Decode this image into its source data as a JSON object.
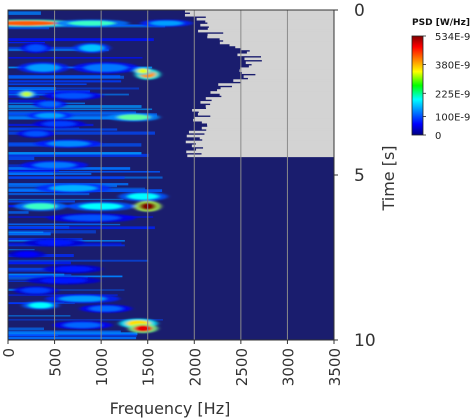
{
  "chart_data": {
    "type": "heatmap",
    "title": "",
    "xlabel": "Frequency [Hz]",
    "ylabel": "Time [s]",
    "xlim": [
      0,
      3500
    ],
    "ylim": [
      0,
      10
    ],
    "y_inverted": true,
    "x_ticks": [
      0,
      500,
      1000,
      1500,
      2000,
      2500,
      3000,
      3500
    ],
    "x_tick_labels": [
      "0",
      "500",
      "1000",
      "1500",
      "2000",
      "2500",
      "3000",
      "3500"
    ],
    "y_ticks": [
      0,
      5,
      10
    ],
    "y_tick_labels": [
      "0",
      "5",
      "10"
    ],
    "grid": true,
    "colormap": "jet",
    "background_color": "#1a1d6e",
    "masked_color": "#d3d3d3",
    "colorbar": {
      "title": "PSD [W/Hz]",
      "placement": "top-right",
      "range": [
        0,
        5.34e-07
      ],
      "ticks": [
        0,
        1e-07,
        2.25e-07,
        3.8e-07,
        5.34e-07
      ],
      "tick_labels": [
        "0",
        "100E-9",
        "225E-9",
        "380E-9",
        "534E-9"
      ]
    },
    "masked_region_upper_edge_freq_hz": [
      {
        "time_s": 0.0,
        "freq_hz": 1950
      },
      {
        "time_s": 0.5,
        "freq_hz": 2100
      },
      {
        "time_s": 1.0,
        "freq_hz": 2400
      },
      {
        "time_s": 1.5,
        "freq_hz": 2700
      },
      {
        "time_s": 2.0,
        "freq_hz": 2500
      },
      {
        "time_s": 2.5,
        "freq_hz": 2200
      },
      {
        "time_s": 3.0,
        "freq_hz": 2100
      },
      {
        "time_s": 3.5,
        "freq_hz": 2050
      },
      {
        "time_s": 4.0,
        "freq_hz": 2000
      },
      {
        "time_s": 4.4,
        "freq_hz": 1980
      }
    ],
    "hotspots": [
      {
        "time_s": 0.4,
        "freq_hz": 200,
        "freq_width_hz": 700,
        "time_width_s": 0.06,
        "psd": 4.2e-07
      },
      {
        "time_s": 0.4,
        "freq_hz": 900,
        "freq_width_hz": 500,
        "time_width_s": 0.06,
        "psd": 2.3e-07
      },
      {
        "time_s": 0.4,
        "freq_hz": 1700,
        "freq_width_hz": 350,
        "time_width_s": 0.06,
        "psd": 1.5e-07
      },
      {
        "time_s": 1.15,
        "freq_hz": 900,
        "freq_width_hz": 250,
        "time_width_s": 0.12,
        "psd": 1.7e-07
      },
      {
        "time_s": 1.15,
        "freq_hz": 300,
        "freq_width_hz": 200,
        "time_width_s": 0.12,
        "psd": 1.1e-07
      },
      {
        "time_s": 1.75,
        "freq_hz": 380,
        "freq_width_hz": 350,
        "time_width_s": 0.14,
        "psd": 1.5e-07
      },
      {
        "time_s": 1.75,
        "freq_hz": 1050,
        "freq_width_hz": 450,
        "time_width_s": 0.14,
        "psd": 1.3e-07
      },
      {
        "time_s": 1.95,
        "freq_hz": 1500,
        "freq_width_hz": 170,
        "time_width_s": 0.13,
        "psd": 3.9e-07
      },
      {
        "time_s": 1.85,
        "freq_hz": 1450,
        "freq_width_hz": 130,
        "time_width_s": 0.06,
        "psd": 3.2e-07
      },
      {
        "time_s": 2.55,
        "freq_hz": 200,
        "freq_width_hz": 120,
        "time_width_s": 0.07,
        "psd": 3e-07
      },
      {
        "time_s": 2.6,
        "freq_hz": 700,
        "freq_width_hz": 400,
        "time_width_s": 0.08,
        "psd": 1.1e-07
      },
      {
        "time_s": 2.85,
        "freq_hz": 450,
        "freq_width_hz": 220,
        "time_width_s": 0.08,
        "psd": 1.2e-07
      },
      {
        "time_s": 3.25,
        "freq_hz": 1350,
        "freq_width_hz": 350,
        "time_width_s": 0.08,
        "psd": 2.5e-07
      },
      {
        "time_s": 3.2,
        "freq_hz": 450,
        "freq_width_hz": 300,
        "time_width_s": 0.07,
        "psd": 1.5e-07
      },
      {
        "time_s": 3.45,
        "freq_hz": 550,
        "freq_width_hz": 350,
        "time_width_s": 0.07,
        "psd": 1e-07
      },
      {
        "time_s": 3.75,
        "freq_hz": 300,
        "freq_width_hz": 250,
        "time_width_s": 0.07,
        "psd": 1.1e-07
      },
      {
        "time_s": 4.05,
        "freq_hz": 650,
        "freq_width_hz": 450,
        "time_width_s": 0.08,
        "psd": 1.4e-07
      },
      {
        "time_s": 4.7,
        "freq_hz": 500,
        "freq_width_hz": 450,
        "time_width_s": 0.09,
        "psd": 1.3e-07
      },
      {
        "time_s": 5.4,
        "freq_hz": 700,
        "freq_width_hz": 500,
        "time_width_s": 0.1,
        "psd": 1.6e-07
      },
      {
        "time_s": 5.65,
        "freq_hz": 1450,
        "freq_width_hz": 330,
        "time_width_s": 0.1,
        "psd": 2e-07
      },
      {
        "time_s": 5.95,
        "freq_hz": 1500,
        "freq_width_hz": 180,
        "time_width_s": 0.13,
        "psd": 5.34e-07
      },
      {
        "time_s": 5.95,
        "freq_hz": 350,
        "freq_width_hz": 350,
        "time_width_s": 0.1,
        "psd": 2.3e-07
      },
      {
        "time_s": 5.95,
        "freq_hz": 1000,
        "freq_width_hz": 450,
        "time_width_s": 0.1,
        "psd": 2e-07
      },
      {
        "time_s": 6.3,
        "freq_hz": 900,
        "freq_width_hz": 600,
        "time_width_s": 0.09,
        "psd": 1.1e-07
      },
      {
        "time_s": 7.05,
        "freq_hz": 500,
        "freq_width_hz": 400,
        "time_width_s": 0.07,
        "psd": 8e-08
      },
      {
        "time_s": 7.4,
        "freq_hz": 200,
        "freq_width_hz": 250,
        "time_width_s": 0.07,
        "psd": 7e-08
      },
      {
        "time_s": 7.85,
        "freq_hz": 700,
        "freq_width_hz": 400,
        "time_width_s": 0.08,
        "psd": 8e-08
      },
      {
        "time_s": 8.2,
        "freq_hz": 600,
        "freq_width_hz": 500,
        "time_width_s": 0.07,
        "psd": 8e-08
      },
      {
        "time_s": 8.5,
        "freq_hz": 300,
        "freq_width_hz": 300,
        "time_width_s": 0.08,
        "psd": 1e-07
      },
      {
        "time_s": 8.75,
        "freq_hz": 800,
        "freq_width_hz": 500,
        "time_width_s": 0.09,
        "psd": 1.5e-07
      },
      {
        "time_s": 8.95,
        "freq_hz": 350,
        "freq_width_hz": 250,
        "time_width_s": 0.08,
        "psd": 2e-07
      },
      {
        "time_s": 9.05,
        "freq_hz": 1050,
        "freq_width_hz": 350,
        "time_width_s": 0.08,
        "psd": 1.2e-07
      },
      {
        "time_s": 9.5,
        "freq_hz": 1400,
        "freq_width_hz": 260,
        "time_width_s": 0.11,
        "psd": 3.5e-07
      },
      {
        "time_s": 9.65,
        "freq_hz": 1450,
        "freq_width_hz": 200,
        "time_width_s": 0.1,
        "psd": 4.8e-07
      },
      {
        "time_s": 9.55,
        "freq_hz": 800,
        "freq_width_hz": 400,
        "time_width_s": 0.08,
        "psd": 1.2e-07
      }
    ]
  }
}
